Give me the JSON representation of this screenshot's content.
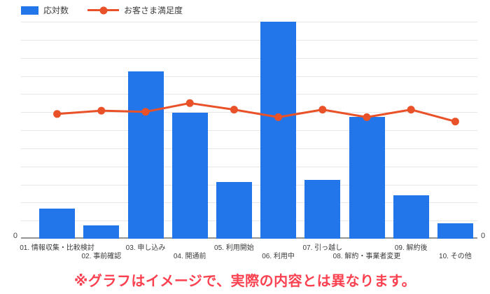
{
  "note": "※グラフはイメージで、実際の内容とは異なります。",
  "colors": {
    "bar_series": "#2276e9",
    "line_series": "#e95229",
    "note_red": "#fb4150",
    "gridline": "#e7e7e7",
    "axis_baseline": "#949494",
    "label_text": "#3b3b3b"
  },
  "chart_data": {
    "type": "bar",
    "subtype": "combo-bar-line",
    "title": "",
    "categories": [
      "01. 情報収集・比較検討",
      "02. 事前確認",
      "03. 申し込み",
      "04. 開通前",
      "05. 利用開始",
      "06. 利用中",
      "07. 引っ越し",
      "08. 解約・事業者変更",
      "09. 解約後",
      "10. その他"
    ],
    "series": [
      {
        "name": "応対数",
        "type": "bar",
        "color": "#2276e9",
        "values": [
          14,
          6,
          77,
          58,
          26,
          100,
          27,
          56,
          20,
          7
        ]
      },
      {
        "name": "お客さま満足度",
        "type": "line",
        "color": "#e95229",
        "values": [
          57.5,
          59,
          58.5,
          62.5,
          59.5,
          56,
          59.5,
          56,
          59.5,
          54
        ]
      }
    ],
    "xlabel": "",
    "ylabel": "",
    "ylim": [
      0,
      100
    ],
    "y_axis_left_tick": "0",
    "y_axis_right_tick": "0",
    "grid": true,
    "grid_intervals": 12,
    "legend_position": "top-left",
    "x_label_layout": "staggered-two-rows",
    "axis_values_hidden_except_zero": true
  }
}
